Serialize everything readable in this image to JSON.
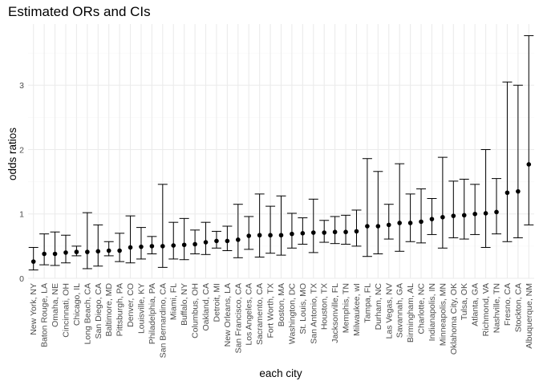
{
  "chart_data": {
    "type": "scatter",
    "title": "Estimated ORs and CIs",
    "xlabel": "each city",
    "ylabel": "odds ratios",
    "ylim": [
      0,
      3.95
    ],
    "yticks": [
      0,
      1,
      2,
      3
    ],
    "grid": true,
    "legend": "none",
    "series": [
      {
        "categories": [
          "New York, NY",
          "Baton Rouge, LA",
          "Omaha, NE",
          "Cincinnati, OH",
          "Chicago, IL",
          "Long Beach, CA",
          "San Diego, CA",
          "Baltimore, MD",
          "Pittsburgh, PA",
          "Denver, CO",
          "Louisville, KY",
          "Philadelphia, PA",
          "San Bernardino, CA",
          "Miami, FL",
          "Buffalo, NY",
          "Columbus, OH",
          "Oakland, CA",
          "Detroit, MI",
          "New Orleans, LA",
          "San Francisco, CA",
          "Los Angeles, CA",
          "Sacramento, CA",
          "Fort Worth, TX",
          "Boston, MA",
          "Washington, DC",
          "St. Louis, MO",
          "San Antonio, TX",
          "Houston, TX",
          "Jacksonville, FL",
          "Memphis, TN",
          "Milwaukee, wI",
          "Tampa, FL",
          "Durham, NC",
          "Las Vegas, NV",
          "Savannah, GA",
          "Birmingham, AL",
          "Charlotte, NC",
          "Indianapolis, IN",
          "Minneapolis, MN",
          "Oklahoma City, OK",
          "Tulsa, OK",
          "Atlanta, GA",
          "Richmond, VA",
          "Nashville, TN",
          "Fresno, CA",
          "Stockton, CA",
          "Albuquerque, NM"
        ],
        "estimate": [
          0.26,
          0.38,
          0.38,
          0.4,
          0.41,
          0.41,
          0.42,
          0.43,
          0.43,
          0.48,
          0.49,
          0.5,
          0.5,
          0.51,
          0.52,
          0.53,
          0.56,
          0.58,
          0.58,
          0.6,
          0.66,
          0.67,
          0.67,
          0.67,
          0.69,
          0.7,
          0.71,
          0.71,
          0.72,
          0.72,
          0.73,
          0.81,
          0.81,
          0.83,
          0.86,
          0.86,
          0.88,
          0.92,
          0.95,
          0.97,
          0.98,
          1.0,
          1.01,
          1.03,
          1.33,
          1.35,
          1.77
        ],
        "ci_lower": [
          0.13,
          0.21,
          0.2,
          0.24,
          0.35,
          0.15,
          0.19,
          0.35,
          0.26,
          0.24,
          0.3,
          0.38,
          0.17,
          0.3,
          0.29,
          0.38,
          0.37,
          0.47,
          0.43,
          0.32,
          0.45,
          0.33,
          0.39,
          0.36,
          0.47,
          0.53,
          0.4,
          0.56,
          0.54,
          0.53,
          0.5,
          0.34,
          0.38,
          0.61,
          0.42,
          0.57,
          0.55,
          0.68,
          0.47,
          0.63,
          0.61,
          0.68,
          0.48,
          0.69,
          0.57,
          0.63,
          0.83
        ],
        "ci_upper": [
          0.48,
          0.69,
          0.72,
          0.67,
          0.5,
          1.02,
          0.83,
          0.57,
          0.7,
          0.97,
          0.79,
          0.65,
          1.46,
          0.87,
          0.93,
          0.75,
          0.87,
          0.73,
          0.81,
          1.15,
          0.96,
          1.31,
          1.12,
          1.28,
          1.01,
          0.94,
          1.23,
          0.9,
          0.96,
          0.98,
          1.06,
          1.86,
          1.66,
          1.15,
          1.78,
          1.31,
          1.39,
          1.24,
          1.88,
          1.51,
          1.54,
          1.46,
          2.0,
          1.55,
          3.05,
          3.0,
          3.77
        ]
      }
    ]
  }
}
